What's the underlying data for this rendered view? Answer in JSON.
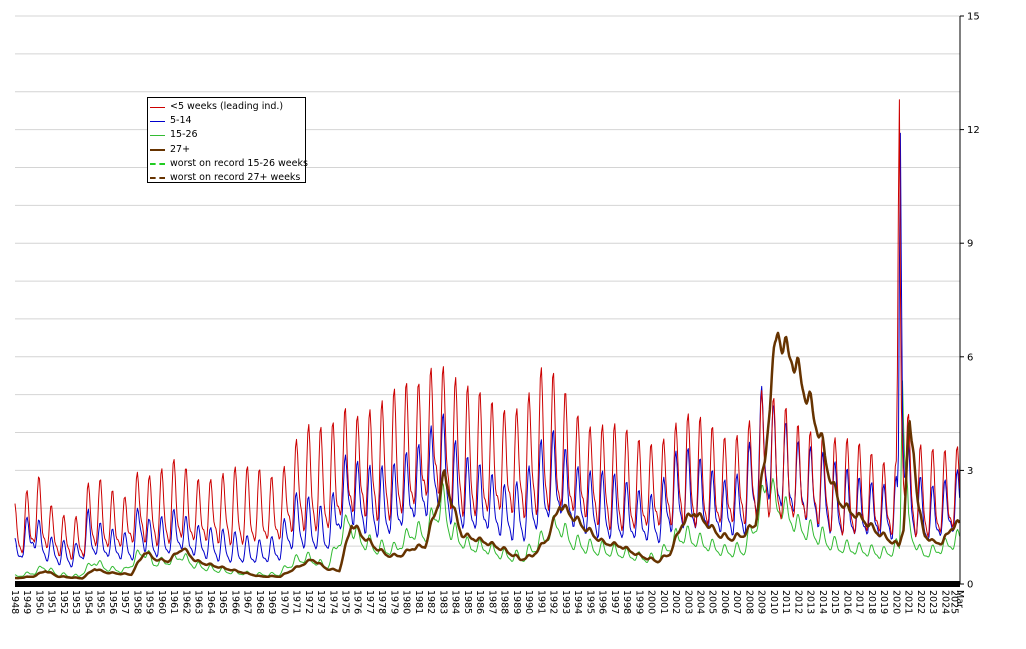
{
  "chart_data": {
    "type": "line",
    "title": "",
    "xlabel": "",
    "ylabel": "",
    "ylim": [
      0,
      15
    ],
    "y_ticks": [
      "0",
      "3",
      "6",
      "9",
      "12",
      "15"
    ],
    "y_axis_side": "right",
    "grid": "horizontal",
    "legend_position": "upper-left",
    "x_tick_labels": [
      "1948",
      "1949",
      "1950",
      "1951",
      "1952",
      "1953",
      "1954",
      "1955",
      "1956",
      "1957",
      "1958",
      "1959",
      "1960",
      "1961",
      "1962",
      "1963",
      "1964",
      "1965",
      "1966",
      "1967",
      "1968",
      "1969",
      "1970",
      "1971",
      "1972",
      "1973",
      "1974",
      "1975",
      "1976",
      "1977",
      "1978",
      "1979",
      "1980",
      "1981",
      "1982",
      "1983",
      "1984",
      "1985",
      "1986",
      "1987",
      "1988",
      "1989",
      "1990",
      "1991",
      "1992",
      "1993",
      "1994",
      "1995",
      "1996",
      "1997",
      "1998",
      "1999",
      "2000",
      "2001",
      "2002",
      "2003",
      "2004",
      "2005",
      "2006",
      "2007",
      "2008",
      "2009",
      "2010",
      "2011",
      "2012",
      "2013",
      "2014",
      "2015",
      "2016",
      "2017",
      "2018",
      "2019",
      "2020",
      "2021",
      "2022",
      "2023",
      "2024",
      "2025",
      "Mar"
    ],
    "x_range": [
      1948,
      2025.2
    ],
    "series": [
      {
        "name": "<5 weeks (leading ind.)",
        "color": "#cc0000",
        "width": 1,
        "seasonal_amplitude": 0.45,
        "points": [
          [
            1948.0,
            1.3
          ],
          [
            1949.3,
            1.6
          ],
          [
            1949.8,
            1.9
          ],
          [
            1950.5,
            1.5
          ],
          [
            1951.5,
            1.2
          ],
          [
            1953.3,
            1.1
          ],
          [
            1953.9,
            1.6
          ],
          [
            1954.5,
            1.8
          ],
          [
            1955.5,
            1.6
          ],
          [
            1957.0,
            1.5
          ],
          [
            1958.2,
            2.0
          ],
          [
            1959.0,
            1.8
          ],
          [
            1960.5,
            1.9
          ],
          [
            1961.3,
            2.1
          ],
          [
            1962.5,
            1.8
          ],
          [
            1964.0,
            1.8
          ],
          [
            1966.0,
            1.9
          ],
          [
            1968.0,
            1.9
          ],
          [
            1969.5,
            1.8
          ],
          [
            1970.8,
            2.4
          ],
          [
            1972.0,
            2.6
          ],
          [
            1973.5,
            2.5
          ],
          [
            1975.0,
            3.0
          ],
          [
            1976.0,
            2.9
          ],
          [
            1978.0,
            3.0
          ],
          [
            1980.0,
            3.3
          ],
          [
            1981.0,
            3.4
          ],
          [
            1982.5,
            3.9
          ],
          [
            1983.5,
            3.5
          ],
          [
            1985.0,
            3.2
          ],
          [
            1986.5,
            3.1
          ],
          [
            1988.0,
            3.0
          ],
          [
            1989.5,
            3.0
          ],
          [
            1991.0,
            3.5
          ],
          [
            1992.5,
            3.4
          ],
          [
            1993.5,
            3.0
          ],
          [
            1995.0,
            2.7
          ],
          [
            1997.0,
            2.6
          ],
          [
            1999.0,
            2.4
          ],
          [
            2000.5,
            2.4
          ],
          [
            2001.5,
            2.6
          ],
          [
            2002.5,
            2.8
          ],
          [
            2004.0,
            2.7
          ],
          [
            2006.0,
            2.5
          ],
          [
            2007.5,
            2.6
          ],
          [
            2008.8,
            3.0
          ],
          [
            2009.3,
            3.4
          ],
          [
            2010.0,
            3.0
          ],
          [
            2011.0,
            2.9
          ],
          [
            2012.0,
            2.7
          ],
          [
            2013.5,
            2.6
          ],
          [
            2015.0,
            2.4
          ],
          [
            2017.0,
            2.3
          ],
          [
            2019.0,
            2.1
          ],
          [
            2020.05,
            2.1
          ],
          [
            2020.25,
            13.9
          ],
          [
            2020.4,
            6.0
          ],
          [
            2020.8,
            3.0
          ],
          [
            2021.5,
            2.3
          ],
          [
            2022.5,
            2.2
          ],
          [
            2023.5,
            2.2
          ],
          [
            2024.5,
            2.3
          ],
          [
            2025.2,
            2.4
          ]
        ]
      },
      {
        "name": "5-14",
        "color": "#0000cc",
        "width": 1,
        "seasonal_amplitude": 0.38,
        "points": [
          [
            1948.0,
            0.8
          ],
          [
            1949.5,
            1.4
          ],
          [
            1950.5,
            0.9
          ],
          [
            1951.5,
            0.8
          ],
          [
            1953.0,
            0.7
          ],
          [
            1954.0,
            1.3
          ],
          [
            1954.8,
            1.1
          ],
          [
            1956.0,
            1.0
          ],
          [
            1957.5,
            0.9
          ],
          [
            1958.3,
            1.6
          ],
          [
            1959.0,
            1.1
          ],
          [
            1960.5,
            1.2
          ],
          [
            1961.3,
            1.4
          ],
          [
            1962.5,
            1.1
          ],
          [
            1964.0,
            1.0
          ],
          [
            1966.0,
            0.9
          ],
          [
            1968.0,
            0.8
          ],
          [
            1969.5,
            0.9
          ],
          [
            1970.8,
            1.6
          ],
          [
            1972.0,
            1.5
          ],
          [
            1973.5,
            1.3
          ],
          [
            1975.2,
            2.5
          ],
          [
            1976.0,
            2.2
          ],
          [
            1977.5,
            2.0
          ],
          [
            1979.0,
            2.1
          ],
          [
            1980.5,
            2.5
          ],
          [
            1981.5,
            2.6
          ],
          [
            1982.7,
            3.2
          ],
          [
            1983.5,
            2.6
          ],
          [
            1985.0,
            2.2
          ],
          [
            1986.5,
            2.1
          ],
          [
            1988.0,
            1.8
          ],
          [
            1989.5,
            1.8
          ],
          [
            1991.0,
            2.5
          ],
          [
            1992.3,
            2.8
          ],
          [
            1993.5,
            2.2
          ],
          [
            1995.0,
            2.0
          ],
          [
            1997.0,
            1.9
          ],
          [
            1999.0,
            1.7
          ],
          [
            2000.5,
            1.6
          ],
          [
            2001.5,
            2.2
          ],
          [
            2002.5,
            2.4
          ],
          [
            2004.0,
            2.2
          ],
          [
            2006.0,
            1.9
          ],
          [
            2007.5,
            2.0
          ],
          [
            2008.8,
            3.2
          ],
          [
            2009.3,
            3.7
          ],
          [
            2010.0,
            3.1
          ],
          [
            2011.0,
            2.9
          ],
          [
            2012.0,
            2.6
          ],
          [
            2013.5,
            2.4
          ],
          [
            2015.0,
            2.1
          ],
          [
            2017.0,
            1.9
          ],
          [
            2019.0,
            1.8
          ],
          [
            2020.15,
            1.9
          ],
          [
            2020.33,
            14.4
          ],
          [
            2020.5,
            6.5
          ],
          [
            2020.8,
            2.6
          ],
          [
            2021.5,
            2.0
          ],
          [
            2022.5,
            1.7
          ],
          [
            2023.5,
            1.8
          ],
          [
            2024.5,
            2.0
          ],
          [
            2025.2,
            2.1
          ]
        ]
      },
      {
        "name": "15-26",
        "color": "#33bb33",
        "width": 1,
        "seasonal_amplitude": 0.18,
        "points": [
          [
            1948.0,
            0.2
          ],
          [
            1949.6,
            0.3
          ],
          [
            1950.3,
            0.45
          ],
          [
            1951.5,
            0.25
          ],
          [
            1953.2,
            0.2
          ],
          [
            1954.5,
            0.6
          ],
          [
            1955.5,
            0.4
          ],
          [
            1957.0,
            0.35
          ],
          [
            1958.5,
            0.9
          ],
          [
            1959.3,
            0.55
          ],
          [
            1960.7,
            0.6
          ],
          [
            1961.6,
            0.75
          ],
          [
            1962.6,
            0.5
          ],
          [
            1964.0,
            0.4
          ],
          [
            1966.0,
            0.3
          ],
          [
            1968.0,
            0.25
          ],
          [
            1969.5,
            0.25
          ],
          [
            1970.8,
            0.6
          ],
          [
            1971.8,
            0.7
          ],
          [
            1973.5,
            0.45
          ],
          [
            1975.3,
            1.7
          ],
          [
            1976.0,
            1.2
          ],
          [
            1977.5,
            0.95
          ],
          [
            1979.0,
            0.9
          ],
          [
            1980.6,
            1.4
          ],
          [
            1981.5,
            1.3
          ],
          [
            1982.9,
            2.2
          ],
          [
            1983.6,
            1.4
          ],
          [
            1985.0,
            1.0
          ],
          [
            1986.5,
            0.95
          ],
          [
            1988.0,
            0.75
          ],
          [
            1989.5,
            0.7
          ],
          [
            1991.2,
            1.2
          ],
          [
            1992.3,
            1.6
          ],
          [
            1993.5,
            1.1
          ],
          [
            1995.0,
            0.95
          ],
          [
            1997.0,
            0.85
          ],
          [
            1999.0,
            0.7
          ],
          [
            2000.5,
            0.65
          ],
          [
            2001.7,
            1.1
          ],
          [
            2002.5,
            1.3
          ],
          [
            2004.0,
            1.1
          ],
          [
            2006.0,
            0.85
          ],
          [
            2007.5,
            0.9
          ],
          [
            2008.9,
            1.9
          ],
          [
            2009.4,
            2.9
          ],
          [
            2010.0,
            2.2
          ],
          [
            2011.0,
            1.9
          ],
          [
            2012.0,
            1.5
          ],
          [
            2013.5,
            1.3
          ],
          [
            2015.0,
            1.0
          ],
          [
            2017.0,
            0.9
          ],
          [
            2019.0,
            0.8
          ],
          [
            2020.3,
            1.0
          ],
          [
            2020.5,
            6.3
          ],
          [
            2020.7,
            3.5
          ],
          [
            2021.0,
            1.5
          ],
          [
            2022.0,
            0.8
          ],
          [
            2023.0,
            0.85
          ],
          [
            2024.0,
            1.0
          ],
          [
            2025.2,
            1.2
          ]
        ]
      },
      {
        "name": "27+",
        "color": "#663300",
        "width": 2.5,
        "seasonal_amplitude": 0.05,
        "points": [
          [
            1948.0,
            0.15
          ],
          [
            1949.5,
            0.2
          ],
          [
            1950.5,
            0.35
          ],
          [
            1951.5,
            0.2
          ],
          [
            1953.5,
            0.15
          ],
          [
            1954.5,
            0.4
          ],
          [
            1955.5,
            0.3
          ],
          [
            1957.5,
            0.25
          ],
          [
            1958.6,
            0.85
          ],
          [
            1959.5,
            0.65
          ],
          [
            1960.5,
            0.6
          ],
          [
            1961.7,
            0.95
          ],
          [
            1962.8,
            0.6
          ],
          [
            1964.0,
            0.5
          ],
          [
            1966.0,
            0.35
          ],
          [
            1968.0,
            0.2
          ],
          [
            1969.7,
            0.2
          ],
          [
            1970.8,
            0.4
          ],
          [
            1972.3,
            0.65
          ],
          [
            1973.5,
            0.4
          ],
          [
            1974.5,
            0.35
          ],
          [
            1975.5,
            1.6
          ],
          [
            1976.3,
            1.3
          ],
          [
            1977.5,
            0.95
          ],
          [
            1978.5,
            0.75
          ],
          [
            1979.5,
            0.75
          ],
          [
            1980.5,
            0.95
          ],
          [
            1981.5,
            1.0
          ],
          [
            1982.6,
            2.2
          ],
          [
            1983.1,
            2.9
          ],
          [
            1983.8,
            2.0
          ],
          [
            1984.5,
            1.3
          ],
          [
            1985.5,
            1.2
          ],
          [
            1986.5,
            1.1
          ],
          [
            1988.0,
            0.9
          ],
          [
            1989.3,
            0.65
          ],
          [
            1990.3,
            0.75
          ],
          [
            1991.5,
            1.2
          ],
          [
            1992.5,
            2.1
          ],
          [
            1993.5,
            1.8
          ],
          [
            1994.5,
            1.5
          ],
          [
            1996.0,
            1.1
          ],
          [
            1997.5,
            1.0
          ],
          [
            1999.0,
            0.75
          ],
          [
            2000.5,
            0.6
          ],
          [
            2001.5,
            0.8
          ],
          [
            2002.5,
            1.6
          ],
          [
            2003.5,
            1.9
          ],
          [
            2004.5,
            1.6
          ],
          [
            2005.5,
            1.3
          ],
          [
            2006.5,
            1.2
          ],
          [
            2007.5,
            1.3
          ],
          [
            2008.5,
            1.6
          ],
          [
            2009.3,
            3.4
          ],
          [
            2009.8,
            5.3
          ],
          [
            2010.3,
            6.8
          ],
          [
            2010.8,
            6.2
          ],
          [
            2011.5,
            6.0
          ],
          [
            2012.2,
            5.4
          ],
          [
            2013.0,
            4.7
          ],
          [
            2013.8,
            3.9
          ],
          [
            2014.5,
            2.9
          ],
          [
            2015.3,
            2.2
          ],
          [
            2016.3,
            1.9
          ],
          [
            2017.3,
            1.7
          ],
          [
            2018.3,
            1.4
          ],
          [
            2019.3,
            1.2
          ],
          [
            2020.2,
            1.0
          ],
          [
            2020.6,
            1.5
          ],
          [
            2021.05,
            4.2
          ],
          [
            2021.4,
            3.6
          ],
          [
            2021.8,
            2.0
          ],
          [
            2022.3,
            1.3
          ],
          [
            2023.0,
            1.1
          ],
          [
            2023.8,
            1.1
          ],
          [
            2024.5,
            1.5
          ],
          [
            2025.2,
            1.6
          ]
        ]
      }
    ],
    "reference_lines": [
      {
        "name": "worst on record 15-26 weeks",
        "color": "#22cc22",
        "dashed": true
      },
      {
        "name": "worst on record 27+ weeks",
        "color": "#663300",
        "dashed": true
      }
    ]
  },
  "legend": {
    "items": [
      {
        "label": "<5 weeks (leading ind.)",
        "color": "#cc0000",
        "style": "solid",
        "width": 1
      },
      {
        "label": "5-14",
        "color": "#0000cc",
        "style": "solid",
        "width": 1
      },
      {
        "label": "15-26",
        "color": "#33bb33",
        "style": "solid",
        "width": 1
      },
      {
        "label": "27+",
        "color": "#663300",
        "style": "solid",
        "width": 2
      },
      {
        "label": "worst on record 15-26 weeks",
        "color": "#22cc22",
        "style": "dashed",
        "width": 2
      },
      {
        "label": "worst on record 27+ weeks",
        "color": "#663300",
        "style": "dashed",
        "width": 2
      }
    ]
  }
}
